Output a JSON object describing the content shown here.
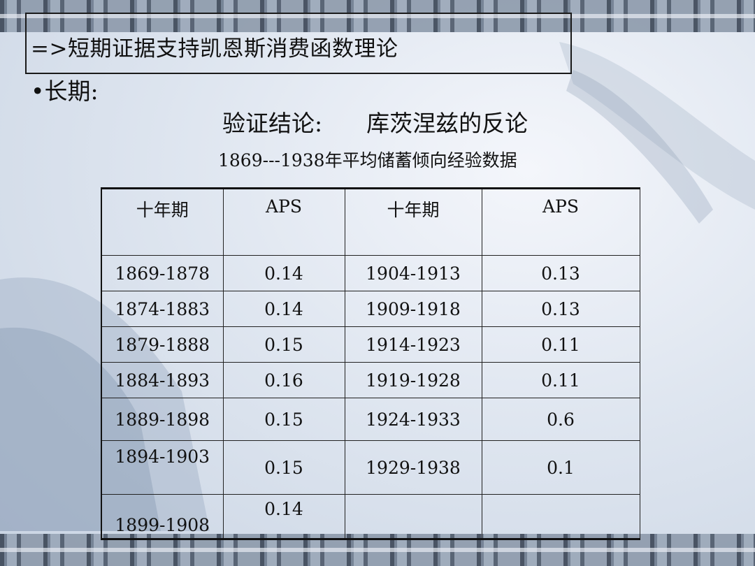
{
  "title_box": {
    "text": "=>短期证据支持凯恩斯消费函数理论"
  },
  "bullet": {
    "text": "•长期:"
  },
  "verify": {
    "label": "验证结论:",
    "value": "库茨涅兹的反论"
  },
  "caption": "1869---1938年平均储蓄倾向经验数据",
  "table": {
    "headers": [
      "十年期",
      "APS",
      "十年期",
      "APS"
    ],
    "rows": [
      [
        "1869-1878",
        "0.14",
        "1904-1913",
        "0.13"
      ],
      [
        "1874-1883",
        "0.14",
        "1909-1918",
        "0.13"
      ],
      [
        "1879-1888",
        "0.15",
        "1914-1923",
        "0.11"
      ],
      [
        "1884-1893",
        "0.16",
        "1919-1928",
        "0.11"
      ],
      [
        "1889-1898",
        "0.15",
        "1924-1933",
        "0.6"
      ],
      [
        "1894-1903",
        "0.15",
        "1929-1938",
        "0.1"
      ],
      [
        "1899-1908",
        "0.14",
        "",
        ""
      ]
    ]
  }
}
